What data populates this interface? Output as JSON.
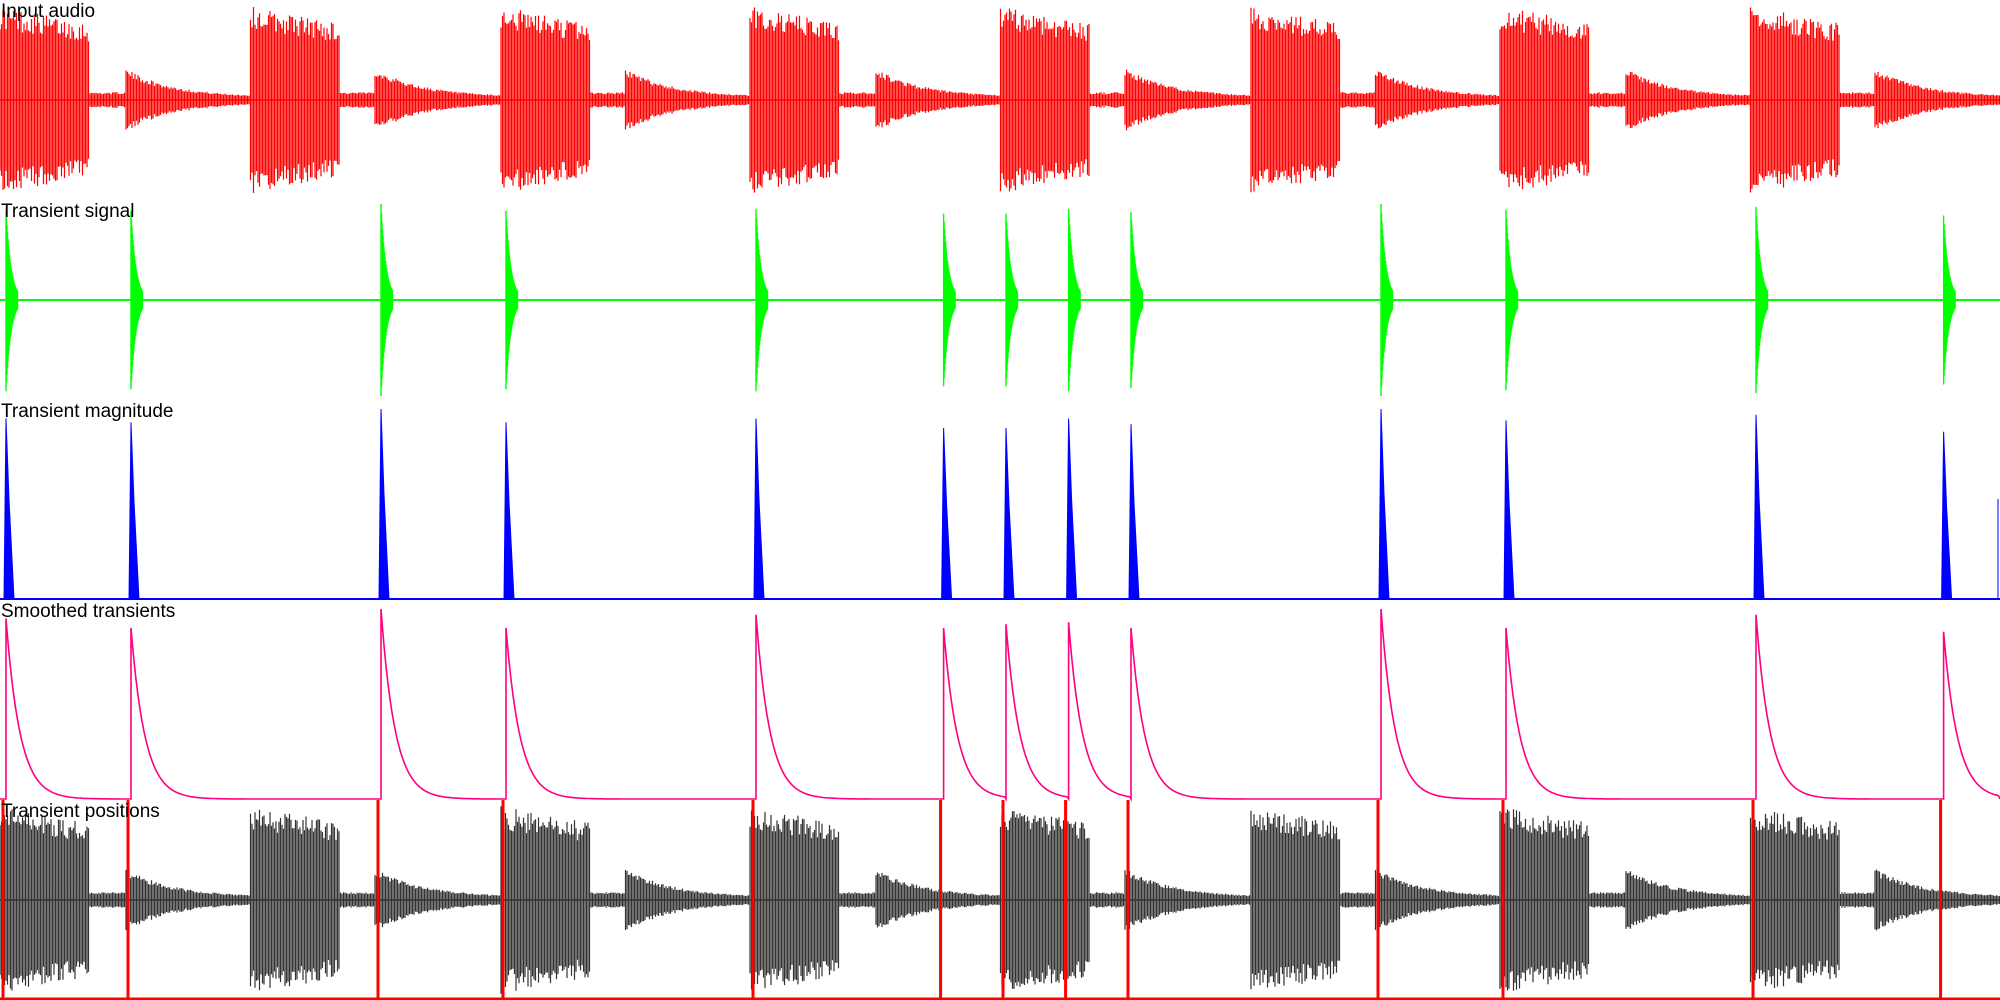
{
  "panels": [
    {
      "label": "Input audio",
      "color": "#ff0000",
      "kind": "waveform"
    },
    {
      "label": "Transient signal",
      "color": "#00ff00",
      "kind": "transient-signal"
    },
    {
      "label": "Transient magnitude",
      "color": "#0000ff",
      "kind": "magnitude"
    },
    {
      "label": "Smoothed transients",
      "color": "#ff0080",
      "kind": "smoothed"
    },
    {
      "label": "Transient positions",
      "color": "#333333",
      "marker_color": "#ff0000",
      "kind": "waveform-with-markers"
    }
  ],
  "chart_data": {
    "type": "line",
    "beat_pattern": [
      "hit",
      "decay",
      "hit",
      "decay"
    ],
    "transient_times": [
      0.0,
      0.0625,
      0.1875,
      0.25,
      0.375,
      0.4688,
      0.5,
      0.5313,
      0.5625,
      0.6875,
      0.75,
      0.875,
      0.9688
    ],
    "transient_magnitudes": [
      0.95,
      0.93,
      1.0,
      0.93,
      0.95,
      0.9,
      0.9,
      0.95,
      0.92,
      1.0,
      0.94,
      0.97,
      0.88
    ],
    "smoothed_peaks": [
      0.95,
      0.9,
      1.0,
      0.9,
      0.97,
      0.9,
      0.92,
      0.93,
      0.9,
      1.0,
      0.9,
      0.97,
      0.88
    ],
    "ylim": [
      -1,
      1
    ]
  }
}
